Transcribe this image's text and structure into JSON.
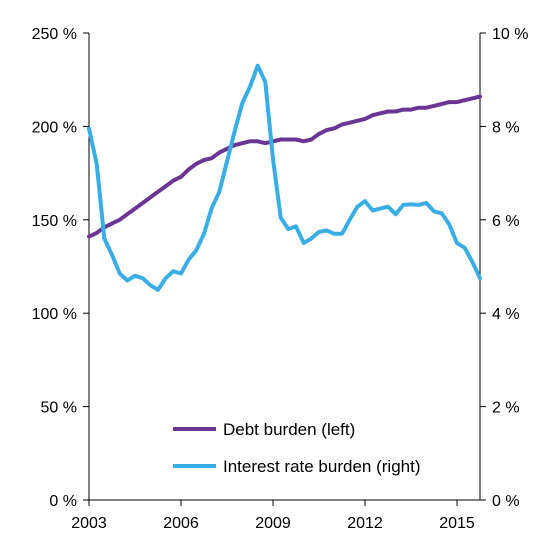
{
  "chart_data": {
    "type": "line",
    "x_axis": {
      "min": 2003,
      "max": 2015.75,
      "ticks": [
        2003,
        2006,
        2009,
        2012,
        2015
      ],
      "tick_labels": [
        "2003",
        "2006",
        "2009",
        "2012",
        "2015"
      ]
    },
    "y_left": {
      "min": 0,
      "max": 250,
      "ticks": [
        0,
        50,
        100,
        150,
        200,
        250
      ],
      "tick_labels": [
        "0 %",
        "50 %",
        "100 %",
        "150 %",
        "200 %",
        "250 %"
      ]
    },
    "y_right": {
      "min": 0,
      "max": 10,
      "ticks": [
        0,
        2,
        4,
        6,
        8,
        10
      ],
      "tick_labels": [
        "0 %",
        "2 %",
        "4 %",
        "6 %",
        "8 %",
        "10 %"
      ]
    },
    "grid": false,
    "legend_position": "bottom-center",
    "x": [
      2003.0,
      2003.25,
      2003.5,
      2003.75,
      2004.0,
      2004.25,
      2004.5,
      2004.75,
      2005.0,
      2005.25,
      2005.5,
      2005.75,
      2006.0,
      2006.25,
      2006.5,
      2006.75,
      2007.0,
      2007.25,
      2007.5,
      2007.75,
      2008.0,
      2008.25,
      2008.5,
      2008.75,
      2009.0,
      2009.25,
      2009.5,
      2009.75,
      2010.0,
      2010.25,
      2010.5,
      2010.75,
      2011.0,
      2011.25,
      2011.5,
      2011.75,
      2012.0,
      2012.25,
      2012.5,
      2012.75,
      2013.0,
      2013.25,
      2013.5,
      2013.75,
      2014.0,
      2014.25,
      2014.5,
      2014.75,
      2015.0,
      2015.25,
      2015.5,
      2015.75
    ],
    "series": [
      {
        "name": "Debt burden (left)",
        "axis": "left",
        "color": "#6a3593",
        "values": [
          141,
          143,
          146,
          148,
          150,
          153,
          156,
          159,
          162,
          165,
          168,
          171,
          173,
          177,
          180,
          182,
          183,
          186,
          188,
          190,
          191,
          192,
          192,
          191,
          192,
          193,
          193,
          193,
          192,
          193,
          196,
          198,
          199,
          201,
          202,
          203,
          204,
          206,
          207,
          208,
          208,
          209,
          209,
          210,
          210,
          211,
          212,
          213,
          213,
          214,
          215,
          216
        ]
      },
      {
        "name": "Interest rate burden (right)",
        "axis": "right",
        "color": "#3aaee4",
        "values": [
          7.95,
          7.2,
          5.6,
          5.25,
          4.85,
          4.7,
          4.8,
          4.75,
          4.6,
          4.5,
          4.75,
          4.9,
          4.85,
          5.15,
          5.35,
          5.7,
          6.25,
          6.6,
          7.25,
          7.9,
          8.5,
          8.85,
          9.3,
          8.95,
          7.3,
          6.05,
          5.8,
          5.86,
          5.5,
          5.6,
          5.74,
          5.77,
          5.7,
          5.7,
          6.0,
          6.28,
          6.4,
          6.2,
          6.24,
          6.28,
          6.12,
          6.32,
          6.33,
          6.32,
          6.36,
          6.18,
          6.14,
          5.9,
          5.5,
          5.4,
          5.1,
          4.75
        ]
      }
    ]
  }
}
